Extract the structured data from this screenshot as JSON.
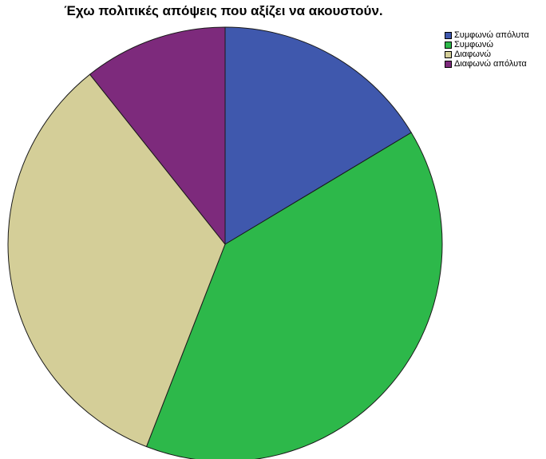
{
  "chart_data": {
    "type": "pie",
    "title": "Έχω πολιτικές απόψεις που αξίζει να ακουστούν.",
    "legend_position": "top-right",
    "start": "top",
    "direction": "clockwise",
    "slices": [
      {
        "label": "Συμφωνώ απόλυτα",
        "value": 16.4,
        "color": "#3f58ad"
      },
      {
        "label": "Συμφωνώ",
        "value": 39.5,
        "color": "#2db84a"
      },
      {
        "label": "Διαφωνώ",
        "value": 33.4,
        "color": "#d4ce98"
      },
      {
        "label": "Διαφωνώ απόλυτα",
        "value": 10.7,
        "color": "#7d2a7c"
      }
    ]
  }
}
